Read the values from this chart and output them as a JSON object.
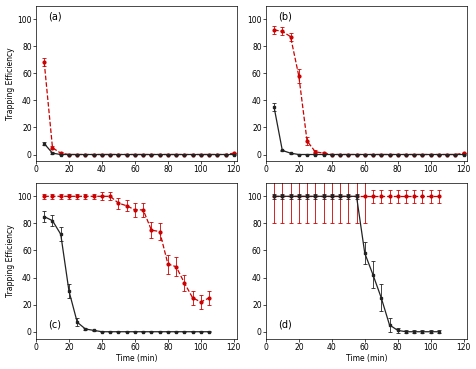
{
  "subplots": [
    "a",
    "b",
    "c",
    "d"
  ],
  "titles": [
    "(a)",
    "(b)",
    "(c)",
    "(d)"
  ],
  "xlabel": "Time (min)",
  "ylabel": "Trapping Efficiency",
  "ylim": [
    -5,
    110
  ],
  "xlim": [
    0,
    122
  ],
  "xticks": [
    0,
    20,
    40,
    60,
    80,
    100,
    120
  ],
  "yticks": [
    0,
    20,
    40,
    60,
    80,
    100
  ],
  "black_color": "#222222",
  "red_color": "#cc0000",
  "a_black_x": [
    5,
    10,
    15,
    20,
    25,
    30,
    35,
    40,
    45,
    50,
    55,
    60,
    65,
    70,
    75,
    80,
    85,
    90,
    95,
    100,
    105,
    110,
    115,
    120
  ],
  "a_black_y": [
    8,
    1,
    0,
    0,
    0,
    0,
    0,
    0,
    0,
    0,
    0,
    0,
    0,
    0,
    0,
    0,
    0,
    0,
    0,
    0,
    0,
    0,
    0,
    0
  ],
  "a_black_err": [
    1,
    0.5,
    0.2,
    0.2,
    0.2,
    0.2,
    0.2,
    0.2,
    0.2,
    0.2,
    0.2,
    0.2,
    0.2,
    0.2,
    0.2,
    0.2,
    0.2,
    0.2,
    0.2,
    0.2,
    0.2,
    0.2,
    0.2,
    0.2
  ],
  "a_red_x": [
    5,
    10,
    15,
    20,
    25,
    30,
    35,
    40,
    45,
    50,
    55,
    60,
    65,
    70,
    75,
    80,
    85,
    90,
    95,
    100,
    105,
    110,
    115,
    120
  ],
  "a_red_y": [
    68,
    5,
    1,
    0,
    0,
    0,
    0,
    0,
    0,
    0,
    0,
    0,
    0,
    0,
    0,
    0,
    0,
    0,
    0,
    0,
    0,
    0,
    0,
    1
  ],
  "a_red_err": [
    3,
    1,
    0.5,
    0.2,
    0.2,
    0.2,
    0.2,
    0.2,
    0.2,
    0.2,
    0.2,
    0.2,
    0.2,
    0.2,
    0.2,
    0.2,
    0.2,
    0.2,
    0.2,
    0.2,
    0.2,
    0.2,
    0.2,
    0.2
  ],
  "b_black_x": [
    5,
    10,
    15,
    20,
    25,
    30,
    35,
    40,
    45,
    50,
    55,
    60,
    65,
    70,
    75,
    80,
    85,
    90,
    95,
    100,
    105,
    110,
    115,
    120
  ],
  "b_black_y": [
    35,
    3,
    1,
    0,
    0,
    0,
    0,
    0,
    0,
    0,
    0,
    0,
    0,
    0,
    0,
    0,
    0,
    0,
    0,
    0,
    0,
    0,
    0,
    0
  ],
  "b_black_err": [
    3,
    0.5,
    0.3,
    0.2,
    0.2,
    0.2,
    0.2,
    0.2,
    0.2,
    0.2,
    0.2,
    0.2,
    0.2,
    0.2,
    0.2,
    0.2,
    0.2,
    0.2,
    0.2,
    0.2,
    0.2,
    0.2,
    0.2,
    0.2
  ],
  "b_red_x": [
    5,
    10,
    15,
    20,
    25,
    30,
    35,
    40,
    45,
    50,
    55,
    60,
    65,
    70,
    75,
    80,
    85,
    90,
    95,
    100,
    105,
    110,
    115,
    120
  ],
  "b_red_y": [
    92,
    91,
    87,
    58,
    10,
    2,
    1,
    0,
    0,
    0,
    0,
    0,
    0,
    0,
    0,
    0,
    0,
    0,
    0,
    0,
    0,
    0,
    0,
    1
  ],
  "b_red_err": [
    3,
    3,
    3,
    5,
    3,
    1,
    0.5,
    0.2,
    0.2,
    0.2,
    0.2,
    0.2,
    0.2,
    0.2,
    0.2,
    0.2,
    0.2,
    0.2,
    0.2,
    0.2,
    0.2,
    0.2,
    0.2,
    0.2
  ],
  "c_black_x": [
    5,
    10,
    15,
    20,
    25,
    30,
    35,
    40,
    45,
    50,
    55,
    60,
    65,
    70,
    75,
    80,
    85,
    90,
    95,
    100,
    105
  ],
  "c_black_y": [
    85,
    82,
    72,
    30,
    7,
    2,
    1,
    0,
    0,
    0,
    0,
    0,
    0,
    0,
    0,
    0,
    0,
    0,
    0,
    0,
    0
  ],
  "c_black_err": [
    4,
    4,
    5,
    5,
    3,
    1,
    0.5,
    0.5,
    0.5,
    0.5,
    0.5,
    0.5,
    0.5,
    0.5,
    0.5,
    0.5,
    0.5,
    0.5,
    0.5,
    0.5,
    0.5
  ],
  "c_red_x": [
    5,
    10,
    15,
    20,
    25,
    30,
    35,
    40,
    45,
    50,
    55,
    60,
    65,
    70,
    75,
    80,
    85,
    90,
    95,
    100,
    105
  ],
  "c_red_y": [
    100,
    100,
    100,
    100,
    100,
    100,
    100,
    100,
    100,
    95,
    93,
    90,
    90,
    75,
    74,
    50,
    48,
    36,
    25,
    22,
    25
  ],
  "c_red_err": [
    2,
    2,
    2,
    2,
    2,
    2,
    2,
    3,
    3,
    4,
    4,
    5,
    5,
    6,
    6,
    7,
    7,
    6,
    5,
    5,
    5
  ],
  "d_black_x": [
    5,
    10,
    15,
    20,
    25,
    30,
    35,
    40,
    45,
    50,
    55,
    60,
    65,
    70,
    75,
    80,
    85,
    90,
    95,
    100,
    105
  ],
  "d_black_y": [
    100,
    100,
    100,
    100,
    100,
    100,
    100,
    100,
    100,
    100,
    100,
    58,
    42,
    25,
    5,
    1,
    0,
    0,
    0,
    0,
    0
  ],
  "d_black_err": [
    2,
    2,
    2,
    2,
    2,
    2,
    2,
    2,
    2,
    2,
    2,
    8,
    10,
    10,
    5,
    2,
    1,
    1,
    1,
    1,
    1
  ],
  "d_red_x": [
    5,
    10,
    15,
    20,
    25,
    30,
    35,
    40,
    45,
    50,
    55,
    60,
    65,
    70,
    75,
    80,
    85,
    90,
    95,
    100,
    105
  ],
  "d_red_y": [
    100,
    100,
    100,
    100,
    100,
    100,
    100,
    100,
    100,
    100,
    100,
    100,
    100,
    100,
    100,
    100,
    100,
    100,
    100,
    100,
    100
  ],
  "d_red_err": [
    20,
    20,
    20,
    20,
    20,
    20,
    20,
    20,
    20,
    20,
    20,
    20,
    5,
    5,
    5,
    5,
    5,
    5,
    5,
    5,
    5
  ]
}
